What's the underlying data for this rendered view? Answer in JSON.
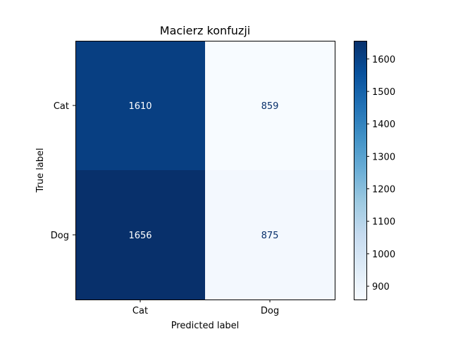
{
  "chart_data": {
    "type": "heatmap",
    "title": "Macierz konfuzji",
    "xlabel": "Predicted label",
    "ylabel": "True label",
    "x_categories": [
      "Cat",
      "Dog"
    ],
    "y_categories": [
      "Cat",
      "Dog"
    ],
    "values": [
      [
        1610,
        859
      ],
      [
        1656,
        875
      ]
    ],
    "colormap": "Blues",
    "colorbar": {
      "range": [
        859,
        1656
      ],
      "ticks": [
        900,
        1000,
        1100,
        1200,
        1300,
        1400,
        1500,
        1600
      ]
    },
    "grid": false
  }
}
